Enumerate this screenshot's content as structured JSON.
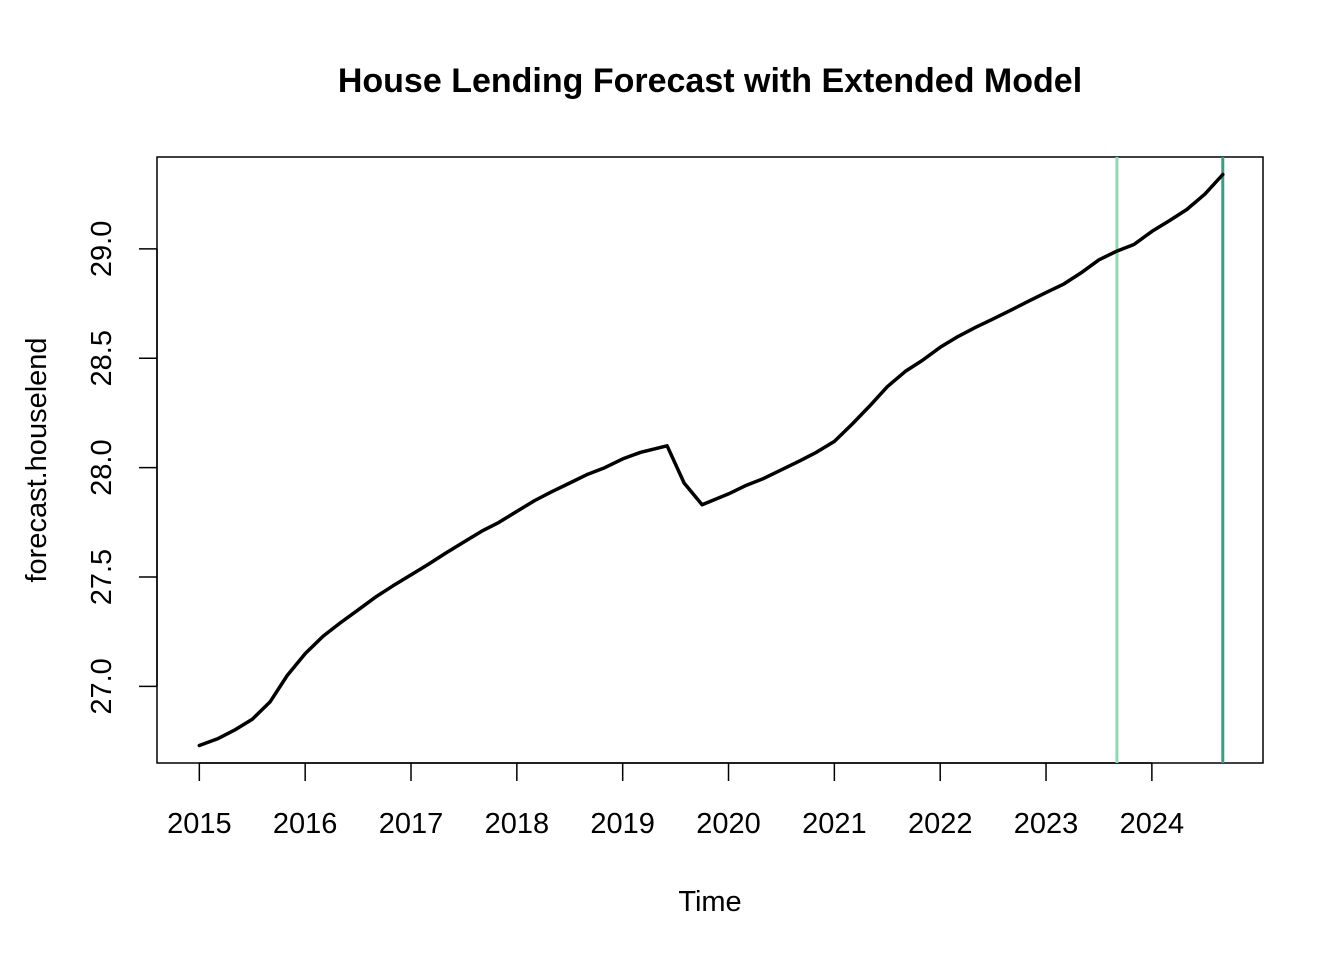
{
  "chart_data": {
    "type": "line",
    "title": "House Lending Forecast with Extended Model",
    "xlabel": "Time",
    "ylabel": "forecast.houselend",
    "xlim": [
      2014.6,
      2025.05
    ],
    "ylim": [
      26.65,
      29.42
    ],
    "x_ticks": [
      2015,
      2016,
      2017,
      2018,
      2019,
      2020,
      2021,
      2022,
      2023,
      2024
    ],
    "x_tick_labels": [
      "2015",
      "2016",
      "2017",
      "2018",
      "2019",
      "2020",
      "2021",
      "2022",
      "2023",
      "2024"
    ],
    "y_ticks": [
      27.0,
      27.5,
      28.0,
      28.5,
      29.0
    ],
    "y_tick_labels": [
      "27.0",
      "27.5",
      "28.0",
      "28.5",
      "29.0"
    ],
    "grid": false,
    "series": [
      {
        "color": "#000000",
        "x": [
          2015.0,
          2015.17,
          2015.33,
          2015.5,
          2015.67,
          2015.83,
          2016.0,
          2016.17,
          2016.33,
          2016.5,
          2016.67,
          2016.83,
          2017.0,
          2017.17,
          2017.33,
          2017.5,
          2017.67,
          2017.83,
          2018.0,
          2018.17,
          2018.33,
          2018.5,
          2018.67,
          2018.83,
          2019.0,
          2019.17,
          2019.42,
          2019.58,
          2019.75,
          2020.0,
          2020.17,
          2020.33,
          2020.5,
          2020.67,
          2020.83,
          2021.0,
          2021.17,
          2021.33,
          2021.5,
          2021.67,
          2021.83,
          2022.0,
          2022.17,
          2022.33,
          2022.5,
          2022.67,
          2022.83,
          2023.0,
          2023.17,
          2023.33,
          2023.5,
          2023.67,
          2023.83,
          2024.0,
          2024.17,
          2024.33,
          2024.5,
          2024.67
        ],
        "y": [
          26.73,
          26.76,
          26.8,
          26.85,
          26.93,
          27.05,
          27.15,
          27.23,
          27.29,
          27.35,
          27.41,
          27.46,
          27.51,
          27.56,
          27.61,
          27.66,
          27.71,
          27.75,
          27.8,
          27.85,
          27.89,
          27.93,
          27.97,
          28.0,
          28.04,
          28.07,
          28.1,
          27.93,
          27.83,
          27.88,
          27.92,
          27.95,
          27.99,
          28.03,
          28.07,
          28.12,
          28.2,
          28.28,
          28.37,
          28.44,
          28.49,
          28.55,
          28.6,
          28.64,
          28.68,
          28.72,
          28.76,
          28.8,
          28.84,
          28.89,
          28.95,
          28.99,
          29.02,
          29.08,
          29.13,
          29.18,
          29.25,
          29.34
        ]
      }
    ],
    "vlines": [
      {
        "x": 2023.67,
        "color": "#8fd9ae"
      },
      {
        "x": 2024.67,
        "color": "#3d9c84"
      }
    ]
  }
}
